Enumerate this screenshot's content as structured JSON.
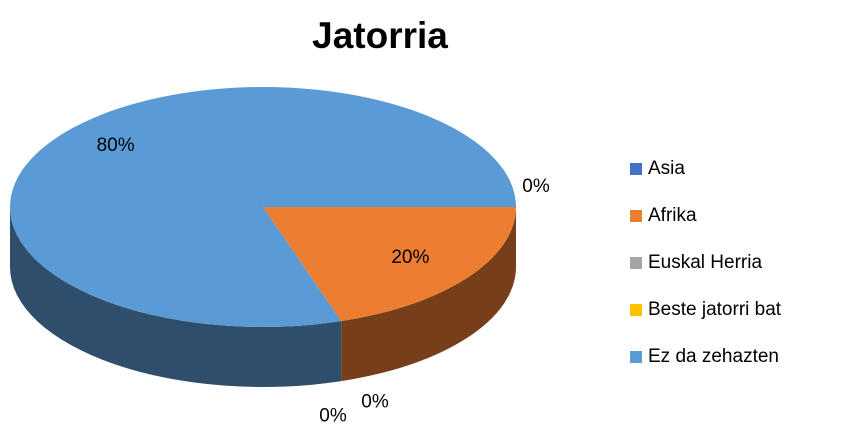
{
  "chart_data": {
    "type": "pie",
    "title": "Jatorria",
    "categories": [
      "Asia",
      "Afrika",
      "Euskal Herria",
      "Beste jatorri bat",
      "Ez da zehazten"
    ],
    "values": [
      0,
      20,
      0,
      0,
      80
    ],
    "value_labels": [
      "0%",
      "20%",
      "0%",
      "0%",
      "80%"
    ],
    "colors": [
      "#4472c4",
      "#ed7d31",
      "#a5a5a5",
      "#ffc000",
      "#5b9bd5"
    ],
    "legend": "right"
  }
}
